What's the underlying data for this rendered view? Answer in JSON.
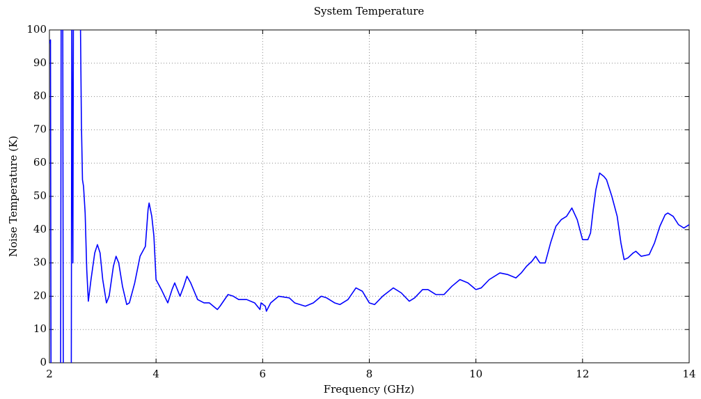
{
  "chart_data": {
    "type": "line",
    "title": "System Temperature",
    "x_label": "Frequency (GHz)",
    "y_label": "Noise Temperature (K)",
    "xlim": [
      2,
      14
    ],
    "ylim": [
      0,
      100
    ],
    "xticks": [
      2,
      4,
      6,
      8,
      10,
      12,
      14
    ],
    "yticks": [
      0,
      10,
      20,
      30,
      40,
      50,
      60,
      70,
      80,
      90,
      100
    ],
    "grid": true,
    "x": [
      2.0,
      2.02,
      2.03,
      2.21,
      2.22,
      2.25,
      2.26,
      2.41,
      2.42,
      2.44,
      2.45,
      2.58,
      2.6,
      2.62,
      2.64,
      2.67,
      2.7,
      2.73,
      2.78,
      2.85,
      2.9,
      2.95,
      3.0,
      3.07,
      3.12,
      3.2,
      3.25,
      3.3,
      3.37,
      3.45,
      3.5,
      3.6,
      3.7,
      3.8,
      3.85,
      3.87,
      3.92,
      3.96,
      4.0,
      4.1,
      4.22,
      4.3,
      4.35,
      4.45,
      4.52,
      4.58,
      4.65,
      4.78,
      4.9,
      5.0,
      5.15,
      5.2,
      5.35,
      5.45,
      5.55,
      5.7,
      5.85,
      5.95,
      5.97,
      6.05,
      6.07,
      6.15,
      6.3,
      6.5,
      6.6,
      6.8,
      6.95,
      7.1,
      7.2,
      7.35,
      7.45,
      7.6,
      7.75,
      7.87,
      8.0,
      8.1,
      8.25,
      8.45,
      8.6,
      8.75,
      8.85,
      9.0,
      9.1,
      9.25,
      9.4,
      9.55,
      9.7,
      9.85,
      10.0,
      10.1,
      10.25,
      10.45,
      10.6,
      10.75,
      10.85,
      10.95,
      11.05,
      11.12,
      11.2,
      11.3,
      11.4,
      11.5,
      11.6,
      11.7,
      11.8,
      11.9,
      12.0,
      12.1,
      12.15,
      12.2,
      12.25,
      12.32,
      12.4,
      12.45,
      12.55,
      12.65,
      12.72,
      12.78,
      12.85,
      12.95,
      13.0,
      13.1,
      13.25,
      13.35,
      13.45,
      13.55,
      13.6,
      13.7,
      13.8,
      13.9,
      14.0
    ],
    "series": [
      {
        "color": "#0000ff",
        "values": [
          96,
          97,
          -5,
          -5,
          105,
          105,
          -5,
          -5,
          105,
          30,
          105,
          105,
          72,
          55,
          53,
          45,
          28,
          18.5,
          25,
          33,
          35.5,
          33,
          25,
          18,
          20,
          29,
          32,
          30,
          23,
          17.5,
          18,
          24,
          32,
          35,
          46,
          48,
          44,
          38,
          25,
          22,
          18,
          22,
          24,
          20,
          23,
          26,
          24,
          19,
          18,
          18,
          16,
          17,
          20.5,
          20,
          19,
          19,
          18,
          16,
          18,
          17,
          15.5,
          18,
          20,
          19.5,
          18,
          17,
          18,
          20,
          19.5,
          18,
          17.5,
          19,
          22.5,
          21.5,
          18,
          17.5,
          20,
          22.5,
          21,
          18.5,
          19.5,
          22,
          22,
          20.5,
          20.5,
          23,
          25,
          24,
          22,
          22.5,
          25,
          27,
          26.5,
          25.5,
          27,
          29,
          30.5,
          32,
          30,
          30,
          36,
          41,
          43,
          44,
          46.5,
          43,
          37,
          37,
          39,
          46,
          52,
          57,
          56,
          55,
          50,
          44,
          36,
          31,
          31.5,
          33,
          33.5,
          32,
          32.5,
          36,
          41,
          44.5,
          45,
          44,
          41.5,
          40.5,
          41.5
        ]
      }
    ]
  }
}
